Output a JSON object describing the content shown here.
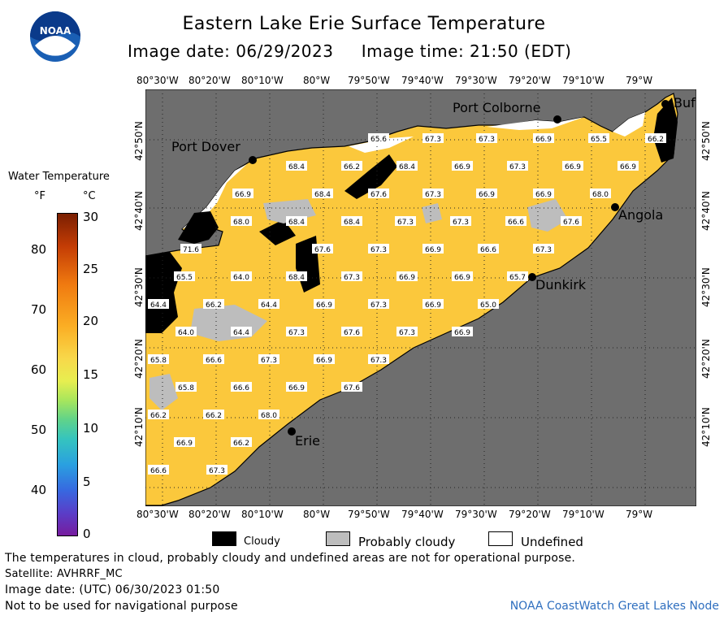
{
  "header": {
    "title": "Eastern Lake Erie Surface Temperature",
    "image_date_label": "Image date: 06/29/2023",
    "image_time_label": "Image time: 21:50 (EDT)"
  },
  "logo": {
    "text": "NOAA",
    "icon": "noaa-logo-icon"
  },
  "axes": {
    "lon_ticks": [
      "80°30'W",
      "80°20'W",
      "80°10'W",
      "80°W",
      "79°50'W",
      "79°40'W",
      "79°30'W",
      "79°20'W",
      "79°10'W",
      "79°W"
    ],
    "lat_ticks": [
      "42°50'N",
      "42°40'N",
      "42°30'N",
      "42°20'N",
      "42°10'N"
    ]
  },
  "places": {
    "port_colborne": "Port Colborne",
    "port_dover": "Port Dover",
    "angola": "Angola",
    "dunkirk": "Dunkirk",
    "erie": "Erie",
    "buffalo": "Buf"
  },
  "temperature_labels": [
    "65.6",
    "67.3",
    "67.3",
    "66.9",
    "65.5",
    "66.2",
    "68.4",
    "66.2",
    "68.4",
    "66.9",
    "67.3",
    "66.9",
    "66.9",
    "66.9",
    "68.4",
    "67.6",
    "67.3",
    "66.9",
    "66.9",
    "68.0",
    "68.0",
    "68.4",
    "68.4",
    "67.3",
    "67.3",
    "66.6",
    "67.6",
    "71.6",
    "67.6",
    "67.3",
    "66.9",
    "66.6",
    "67.3",
    "65.5",
    "64.0",
    "68.4",
    "67.3",
    "66.9",
    "66.9",
    "65.7",
    "64.4",
    "66.2",
    "64.4",
    "66.9",
    "67.3",
    "66.9",
    "65.0",
    "64.0",
    "64.4",
    "67.3",
    "67.6",
    "67.3",
    "66.9",
    "65.8",
    "66.6",
    "67.3",
    "66.9",
    "67.3",
    "65.8",
    "66.6",
    "66.9",
    "67.6",
    "66.2",
    "66.2",
    "68.0",
    "66.9",
    "66.2",
    "66.6",
    "67.3"
  ],
  "legend": {
    "title": "Water Temperature",
    "unit_f": "°F",
    "unit_c": "°C",
    "f_ticks": [
      "80",
      "70",
      "60",
      "50",
      "40"
    ],
    "c_ticks": [
      "30",
      "25",
      "20",
      "15",
      "10",
      "5",
      "0"
    ],
    "colors": {
      "high": "#7a1f02",
      "mid": "#f8d84a",
      "low": "#761c9e"
    }
  },
  "map_colors": {
    "land": "#6e6e6e",
    "water": "#fbc83c",
    "cloudy": "#000000",
    "probably_cloudy": "#bdbdbd",
    "undefined": "#ffffff"
  },
  "key": {
    "cloudy": "Cloudy",
    "probably_cloudy": "Probably cloudy",
    "undefined": "Undefined"
  },
  "footer": {
    "disclaimer": "The temperatures in cloud, probably cloudy and undefined areas are not for operational purpose.",
    "satellite": "Satellite: AVHRRF_MC",
    "utc_date": "Image date: (UTC) 06/30/2023  01:50",
    "nav_warning": "Not to be used for navigational purpose",
    "credit": "NOAA CoastWatch Great Lakes Node"
  }
}
